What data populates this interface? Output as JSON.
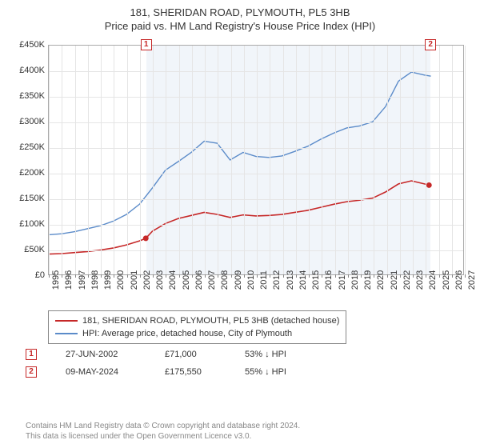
{
  "title": {
    "line1": "181, SHERIDAN ROAD, PLYMOUTH, PL5 3HB",
    "line2": "Price paid vs. HM Land Registry's House Price Index (HPI)"
  },
  "chart": {
    "type": "line",
    "background_color": "#ffffff",
    "grid_color": "#e5e5e5",
    "axis_color": "#aaaaaa",
    "x": {
      "min": 1995,
      "max": 2027,
      "ticks": [
        1995,
        1996,
        1997,
        1998,
        1999,
        2000,
        2001,
        2002,
        2003,
        2004,
        2005,
        2006,
        2007,
        2008,
        2009,
        2010,
        2011,
        2012,
        2013,
        2014,
        2015,
        2016,
        2017,
        2018,
        2019,
        2020,
        2021,
        2022,
        2023,
        2024,
        2025,
        2026,
        2027
      ]
    },
    "y": {
      "min": 0,
      "max": 450000,
      "ticks": [
        0,
        50000,
        100000,
        150000,
        200000,
        250000,
        300000,
        350000,
        400000,
        450000
      ],
      "tick_labels": [
        "£0",
        "£50K",
        "£100K",
        "£150K",
        "£200K",
        "£250K",
        "£300K",
        "£350K",
        "£400K",
        "£450K"
      ]
    },
    "shaded_band": {
      "from": 2002.49,
      "to": 2024.36,
      "color": "rgba(180,200,230,0.18)"
    },
    "series": [
      {
        "id": "price_paid",
        "label": "181, SHERIDAN ROAD, PLYMOUTH, PL5 3HB (detached house)",
        "color": "#c62828",
        "line_width": 1.6,
        "points": [
          [
            1995,
            40000
          ],
          [
            1996,
            41000
          ],
          [
            1997,
            43000
          ],
          [
            1998,
            45000
          ],
          [
            1999,
            48000
          ],
          [
            2000,
            52000
          ],
          [
            2001,
            58000
          ],
          [
            2002,
            66000
          ],
          [
            2002.49,
            71000
          ],
          [
            2003,
            85000
          ],
          [
            2004,
            100000
          ],
          [
            2005,
            110000
          ],
          [
            2006,
            116000
          ],
          [
            2007,
            122000
          ],
          [
            2008,
            118000
          ],
          [
            2009,
            112000
          ],
          [
            2010,
            117000
          ],
          [
            2011,
            115000
          ],
          [
            2012,
            116000
          ],
          [
            2013,
            118000
          ],
          [
            2014,
            122000
          ],
          [
            2015,
            126000
          ],
          [
            2016,
            132000
          ],
          [
            2017,
            138000
          ],
          [
            2018,
            143000
          ],
          [
            2019,
            146000
          ],
          [
            2020,
            150000
          ],
          [
            2021,
            162000
          ],
          [
            2022,
            178000
          ],
          [
            2023,
            184000
          ],
          [
            2024,
            178000
          ],
          [
            2024.36,
            175550
          ]
        ]
      },
      {
        "id": "hpi",
        "label": "HPI: Average price, detached house, City of Plymouth",
        "color": "#5b8bc9",
        "line_width": 1.4,
        "points": [
          [
            1995,
            78000
          ],
          [
            1996,
            80000
          ],
          [
            1997,
            84000
          ],
          [
            1998,
            90000
          ],
          [
            1999,
            96000
          ],
          [
            2000,
            105000
          ],
          [
            2001,
            118000
          ],
          [
            2002,
            138000
          ],
          [
            2003,
            170000
          ],
          [
            2004,
            205000
          ],
          [
            2005,
            222000
          ],
          [
            2006,
            240000
          ],
          [
            2007,
            262000
          ],
          [
            2008,
            258000
          ],
          [
            2009,
            225000
          ],
          [
            2010,
            240000
          ],
          [
            2011,
            232000
          ],
          [
            2012,
            230000
          ],
          [
            2013,
            233000
          ],
          [
            2014,
            242000
          ],
          [
            2015,
            252000
          ],
          [
            2016,
            266000
          ],
          [
            2017,
            278000
          ],
          [
            2018,
            288000
          ],
          [
            2019,
            292000
          ],
          [
            2020,
            300000
          ],
          [
            2021,
            330000
          ],
          [
            2022,
            380000
          ],
          [
            2023,
            398000
          ],
          [
            2024,
            392000
          ],
          [
            2024.5,
            390000
          ]
        ]
      }
    ],
    "sale_markers": [
      {
        "n": "1",
        "x": 2002.49,
        "y": 71000
      },
      {
        "n": "2",
        "x": 2024.36,
        "y": 175550
      }
    ]
  },
  "legend": {
    "items": [
      {
        "color": "#c62828",
        "label": "181, SHERIDAN ROAD, PLYMOUTH, PL5 3HB (detached house)"
      },
      {
        "color": "#5b8bc9",
        "label": "HPI: Average price, detached house, City of Plymouth"
      }
    ]
  },
  "sales_table": {
    "rows": [
      {
        "n": "1",
        "date": "27-JUN-2002",
        "price": "£71,000",
        "pct": "53% ↓ HPI"
      },
      {
        "n": "2",
        "date": "09-MAY-2024",
        "price": "£175,550",
        "pct": "55% ↓ HPI"
      }
    ]
  },
  "footer": {
    "line1": "Contains HM Land Registry data © Crown copyright and database right 2024.",
    "line2": "This data is licensed under the Open Government Licence v3.0."
  },
  "font": {
    "title_size": 13,
    "tick_size": 11,
    "legend_size": 11,
    "footer_size": 10
  }
}
